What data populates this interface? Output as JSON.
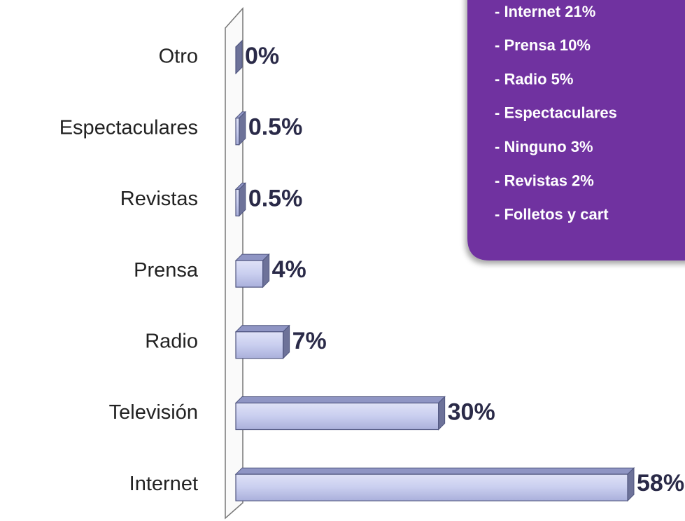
{
  "chart_data": {
    "type": "bar",
    "orientation": "horizontal",
    "categories": [
      "Otro",
      "Espectaculares",
      "Revistas",
      "Prensa",
      "Radio",
      "Televisión",
      "Internet"
    ],
    "values": [
      0,
      0.5,
      0.5,
      4,
      7,
      30,
      58
    ],
    "value_labels": [
      "0%",
      "0.5%",
      "0.5%",
      "4%",
      "7%",
      "30%",
      "58%"
    ],
    "color": "#c9ceef",
    "annotations": [
      "- Internet 21%",
      "- Prensa 10%",
      "- Radio 5%",
      "- Espectaculares",
      "- Ninguno 3%",
      "- Revistas 2%",
      "- Folletos  y cart"
    ]
  }
}
